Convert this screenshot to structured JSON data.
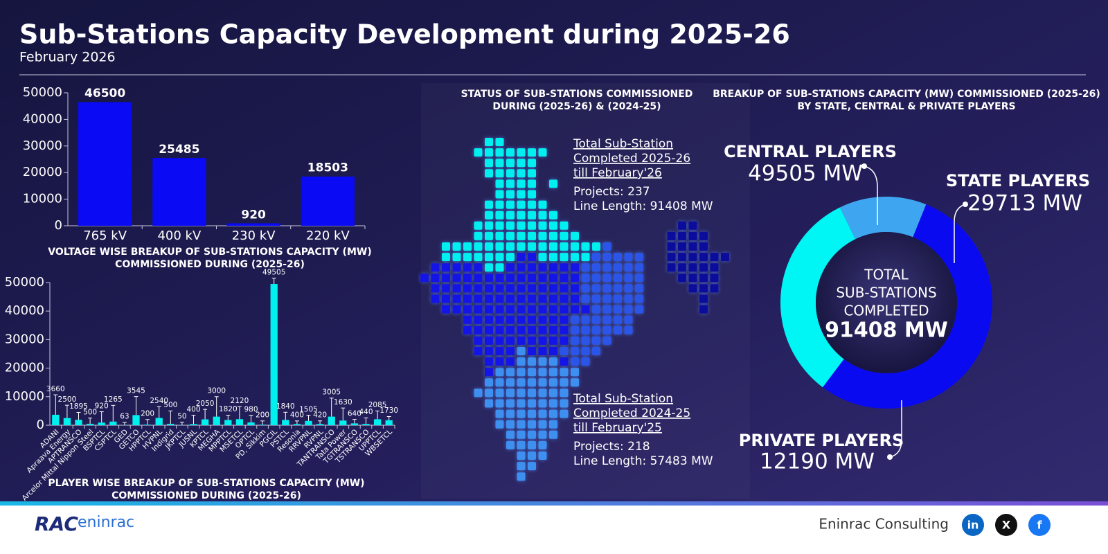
{
  "header": {
    "title": "Sub-Stations Capacity Development during 2025-26",
    "subtitle": "February 2026"
  },
  "chart_data": [
    {
      "type": "bar",
      "title": [
        "VOLTAGE WISE BREAKUP OF SUB-STATIONS CAPACITY (MW)",
        "COMMISSIONED DURING (2025-26)"
      ],
      "categories": [
        "765 kV",
        "400 kV",
        "230 kV",
        "220 kV"
      ],
      "values": [
        46500,
        25485,
        920,
        18503
      ],
      "color": "#0a0af5",
      "ylim": [
        0,
        50000
      ],
      "yticks": [
        0,
        10000,
        20000,
        30000,
        40000,
        50000
      ]
    },
    {
      "type": "bar",
      "title": [
        "PLAYER WISE BREAKUP OF SUB-STATIONS CAPACITY (MW)",
        "COMMISSIONED DURING (2025-26)"
      ],
      "categories": [
        "ADANI",
        "Apraava Energy",
        "APTRANSCO",
        "Arcelor Mittal Nippon Steel",
        "BSPTCL",
        "CSPTCL",
        "GED",
        "GETCO",
        "HPPTCL",
        "HVPNL",
        "Indigrid",
        "JKPTCL",
        "JUSNL",
        "KPTCL",
        "MEGHA",
        "MPPTCL",
        "MSETCL",
        "OPTCL",
        "PD, Sikkim",
        "PGCIL",
        "PSTCL",
        "Resonia",
        "RRVPNL",
        "RVPNL",
        "TANTRANSCO",
        "Tata Power",
        "TGTRANSCO",
        "TSTRANSCO",
        "UPPTCL",
        "WBSETCL"
      ],
      "values": [
        3660,
        2500,
        1895,
        500,
        920,
        1265,
        63,
        3545,
        200,
        2540,
        500,
        50,
        400,
        2050,
        3000,
        1820,
        2120,
        980,
        200,
        49505,
        1840,
        400,
        1505,
        420,
        3005,
        1630,
        640,
        440,
        2085,
        1730
      ],
      "errors": [
        7000,
        4500,
        2600,
        2000,
        3800,
        5700,
        900,
        6500,
        1800,
        4000,
        4500,
        1000,
        3100,
        3500,
        7000,
        1700,
        4400,
        2500,
        1300,
        2000,
        2700,
        1100,
        2000,
        1100,
        6500,
        4400,
        1400,
        2100,
        2900,
        1300
      ],
      "color": "#00f0f0",
      "ylim": [
        0,
        50000
      ],
      "yticks": [
        0,
        10000,
        20000,
        30000,
        40000,
        50000
      ]
    },
    {
      "type": "pie",
      "donut": true,
      "title": [
        "BREAKUP OF SUB-STATIONS CAPACITY (MW) COMMISSIONED (2025-26)",
        "BY STATE, CENTRAL & PRIVATE PLAYERS"
      ],
      "categories": [
        "CENTRAL PLAYERS",
        "STATE PLAYERS",
        "PRIVATE PLAYERS"
      ],
      "values": [
        49505,
        29713,
        12190
      ],
      "value_labels": [
        "49505 MW",
        "29713 MW",
        "12190 MW"
      ],
      "colors": [
        "#0a0af0",
        "#00f5f5",
        "#3ea6f0"
      ],
      "center_text": [
        "TOTAL",
        "SUB-STATIONS",
        "COMPLETED"
      ],
      "total": {
        "value": 91408,
        "label": "91408 MW"
      }
    }
  ],
  "map_panel": {
    "title": [
      "STATUS OF SUB-STATIONS COMMISSIONED",
      "DURING (2025-26) & (2024-25)"
    ],
    "blocks": [
      {
        "heading": [
          "Total Sub-Station",
          "Completed 2025-26",
          "till February'26"
        ],
        "lines": [
          "Projects: 237",
          "Line Length: 91408 MW"
        ]
      },
      {
        "heading": [
          "Total Sub-Station",
          "Completed 2024-25",
          "till February'25"
        ],
        "lines": [
          "Projects: 218",
          "Line Length: 57483 MW"
        ]
      }
    ]
  },
  "footer": {
    "company": "Eninrac Consulting",
    "logo": [
      "RAC",
      "eninrac"
    ],
    "social": [
      "in",
      "X",
      "f"
    ]
  }
}
